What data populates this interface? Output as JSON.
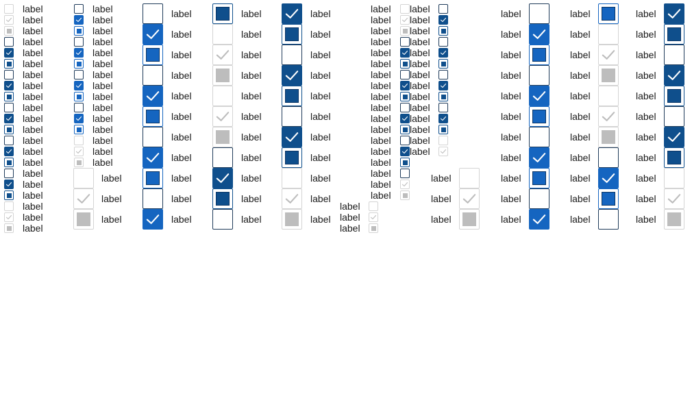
{
  "label": "label",
  "colors": {
    "checked": "#0f4f8c",
    "checked_hover": "#1565c0",
    "border": "#1f3b5a",
    "disabled_border": "#d4d4d4",
    "disabled_mark": "#bdbdbd"
  },
  "icons": {
    "check": "checkmark-icon",
    "indeterminate": "indeterminate-square-icon"
  },
  "states": [
    "unchecked",
    "checked",
    "indeterminate",
    "disabled",
    "disabled-checked",
    "disabled-indeterminate"
  ]
}
